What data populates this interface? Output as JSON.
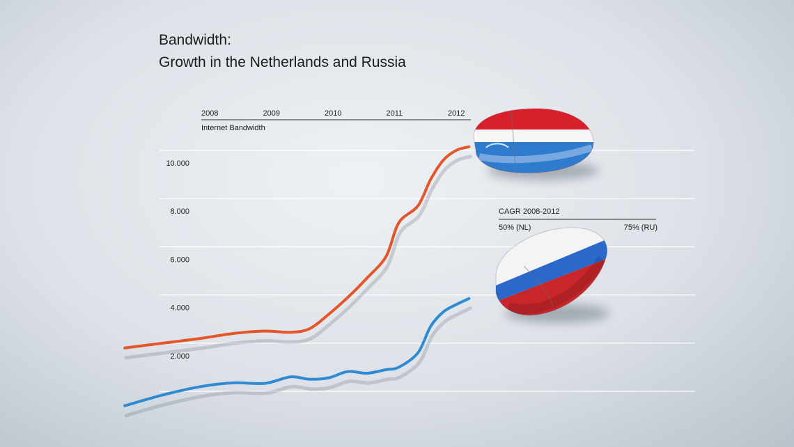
{
  "chart_data": {
    "type": "line",
    "title": "Bandwidth:",
    "subtitle": "Growth in the Netherlands and Russia",
    "top_axis": {
      "label": "Internet Bandwidth",
      "years": [
        "2008",
        "2009",
        "2010",
        "2011",
        "2012"
      ]
    },
    "y_ticks": [
      "2.000",
      "4.000",
      "6.000",
      "8.000",
      "10.000"
    ],
    "y_tick_values": [
      2000,
      4000,
      6000,
      8000,
      10000
    ],
    "ylim": [
      0,
      12000
    ],
    "grid": true,
    "cagr": {
      "label": "CAGR 2008-2012",
      "nl": "50% (NL)",
      "ru": "75% (RU)"
    },
    "series": [
      {
        "color": "#e4552a",
        "x": [
          2006.8,
          2007.4,
          2008.0,
          2008.5,
          2009.0,
          2009.4,
          2009.7,
          2010.0,
          2010.3,
          2010.6,
          2010.9,
          2011.1,
          2011.4,
          2011.6,
          2011.8,
          2012.0,
          2012.2
        ],
        "values": [
          1800,
          2000,
          2200,
          2400,
          2500,
          2450,
          2600,
          3200,
          3900,
          4700,
          5600,
          7000,
          7700,
          8800,
          9600,
          10000,
          10150
        ]
      },
      {
        "color": "#2f8ad2",
        "x": [
          2006.8,
          2007.4,
          2008.0,
          2008.5,
          2009.0,
          2009.4,
          2009.7,
          2010.0,
          2010.3,
          2010.6,
          2010.9,
          2011.1,
          2011.4,
          2011.6,
          2011.8,
          2012.0,
          2012.2
        ],
        "values": [
          -600,
          -150,
          200,
          350,
          330,
          600,
          500,
          560,
          820,
          750,
          900,
          1000,
          1600,
          2700,
          3300,
          3600,
          3850
        ]
      }
    ]
  },
  "colors": {
    "nl_red": "#d8202c",
    "nl_blue": "#2f7ccf",
    "ru_blue": "#2a68c9",
    "ru_red": "#c9262b"
  }
}
